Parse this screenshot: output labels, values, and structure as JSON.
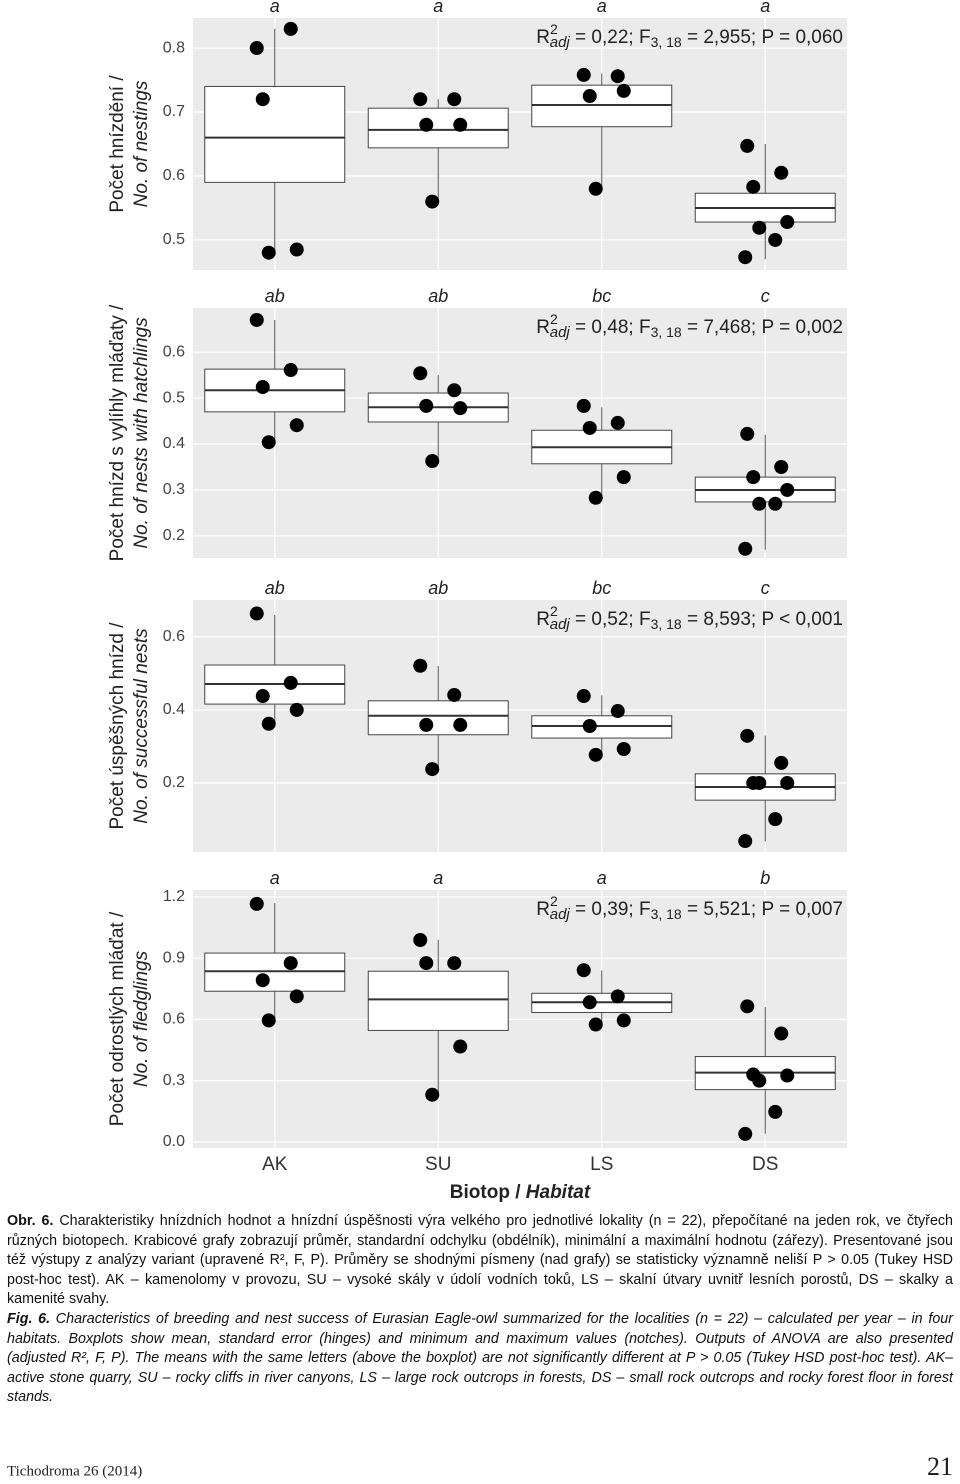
{
  "chart_data": [
    {
      "type": "box",
      "ylabel": [
        "Počet hnízdění /",
        "No. of nestings"
      ],
      "ylim": [
        0.453,
        0.847
      ],
      "yticks": [
        0.5,
        0.6,
        0.7,
        0.8
      ],
      "grid": true,
      "letters": [
        "a",
        "a",
        "a",
        "a"
      ],
      "annotation": {
        "r": "R",
        "sup": "2",
        "sub": "adj",
        "text1": " = 0,22; F",
        "sub2": "3, 18",
        "text2": " = 2,955; P = 0,060"
      },
      "mean": [
        0.66,
        0.672,
        0.711,
        0.55
      ],
      "q1": [
        0.59,
        0.644,
        0.677,
        0.528
      ],
      "q3": [
        0.74,
        0.706,
        0.742,
        0.573
      ],
      "min": [
        0.48,
        0.56,
        0.58,
        0.47
      ],
      "max": [
        0.83,
        0.72,
        0.76,
        0.65
      ],
      "points": [
        [
          0.8,
          0.83,
          0.72,
          0.485,
          0.48
        ],
        [
          0.72,
          0.72,
          0.68,
          0.68,
          0.56
        ],
        [
          0.758,
          0.756,
          0.725,
          0.733,
          0.58
        ],
        [
          0.647,
          0.605,
          0.583,
          0.528,
          0.519,
          0.5,
          0.473
        ]
      ],
      "color": "#000000"
    },
    {
      "type": "box",
      "ylabel": [
        "Počet hnízd s vylíhly mláďaty /",
        "No. of nests with hatchlings"
      ],
      "ylim": [
        0.152,
        0.696
      ],
      "yticks": [
        0.2,
        0.3,
        0.4,
        0.5,
        0.6
      ],
      "grid": true,
      "letters": [
        "ab",
        "ab",
        "bc",
        "c"
      ],
      "annotation": {
        "r": "R",
        "sup": "2",
        "sub": "adj",
        "text1": " = 0,48; F",
        "sub2": "3, 18",
        "text2": " = 7,468; P = 0,002"
      },
      "mean": [
        0.517,
        0.48,
        0.393,
        0.3
      ],
      "q1": [
        0.47,
        0.448,
        0.357,
        0.274
      ],
      "q3": [
        0.563,
        0.511,
        0.43,
        0.328
      ],
      "min": [
        0.4,
        0.36,
        0.28,
        0.17
      ],
      "max": [
        0.67,
        0.55,
        0.48,
        0.42
      ],
      "points": [
        [
          0.67,
          0.561,
          0.524,
          0.441,
          0.404
        ],
        [
          0.554,
          0.517,
          0.483,
          0.478,
          0.363
        ],
        [
          0.483,
          0.446,
          0.435,
          0.328,
          0.283
        ],
        [
          0.422,
          0.35,
          0.328,
          0.3,
          0.27,
          0.27,
          0.172
        ]
      ],
      "color": "#000000"
    },
    {
      "type": "box",
      "ylabel": [
        "Počet úspěšných hnízd /",
        "No. of successful nests"
      ],
      "ylim": [
        0.011,
        0.701
      ],
      "yticks": [
        0.2,
        0.4,
        0.6
      ],
      "grid": true,
      "letters": [
        "ab",
        "ab",
        "bc",
        "c"
      ],
      "annotation": {
        "r": "R",
        "sup": "2",
        "sub": "adj",
        "text1": " = 0,52; F",
        "sub2": "3, 18",
        "text2": " = 8,593; P < 0,001"
      },
      "mean": [
        0.471,
        0.384,
        0.356,
        0.189
      ],
      "q1": [
        0.416,
        0.332,
        0.323,
        0.153
      ],
      "q3": [
        0.523,
        0.425,
        0.384,
        0.225
      ],
      "min": [
        0.36,
        0.24,
        0.28,
        0.04
      ],
      "max": [
        0.66,
        0.52,
        0.44,
        0.33
      ],
      "points": [
        [
          0.664,
          0.474,
          0.438,
          0.4,
          0.362
        ],
        [
          0.521,
          0.441,
          0.359,
          0.359,
          0.238
        ],
        [
          0.438,
          0.397,
          0.356,
          0.293,
          0.277
        ],
        [
          0.329,
          0.255,
          0.2,
          0.2,
          0.2,
          0.101,
          0.041
        ]
      ],
      "color": "#000000"
    },
    {
      "type": "box",
      "ylabel": [
        "Počet odrostlých mláďat /",
        "No. of fledglings"
      ],
      "ylim": [
        -0.03,
        1.234
      ],
      "yticks": [
        {
          "value": 0,
          "label": "0.0"
        },
        0.3,
        0.6,
        0.9,
        1.2
      ],
      "grid": true,
      "letters": [
        "a",
        "a",
        "a",
        "b"
      ],
      "annotation": {
        "r": "R",
        "sup": "2",
        "sub": "adj",
        "text1": " = 0,39; F",
        "sub2": "3, 18",
        "text2": " = 5,521; P = 0,007"
      },
      "mean": [
        0.836,
        0.698,
        0.684,
        0.339
      ],
      "q1": [
        0.738,
        0.546,
        0.634,
        0.256
      ],
      "q3": [
        0.925,
        0.836,
        0.728,
        0.418
      ],
      "min": [
        0.6,
        0.23,
        0.58,
        0.04
      ],
      "max": [
        1.17,
        0.99,
        0.84,
        0.66
      ],
      "points": [
        [
          1.166,
          0.876,
          0.792,
          0.713,
          0.595
        ],
        [
          0.989,
          0.876,
          0.876,
          0.467,
          0.231
        ],
        [
          0.841,
          0.713,
          0.684,
          0.595,
          0.575
        ],
        [
          0.664,
          0.531,
          0.33,
          0.325,
          0.3,
          0.147,
          0.039
        ]
      ],
      "color": "#000000",
      "categories": [
        "AK",
        "SU",
        "LS",
        "DS"
      ],
      "xlabel": {
        "main": "Biotop / ",
        "italic": "Habitat"
      }
    }
  ],
  "caption": {
    "cz_label": "Obr. 6.",
    "cz_text": " Charakteristiky hnízdních hodnot a hnízdní úspěšnosti výra velkého pro jednotlivé lokality (n = 22), přepočítané na jeden rok, ve čtyřech různých biotopech. Krabicové grafy zobrazují průměr, standardní odchylku (obdélník), minimální a maximální hodnotu (zářezy). Presentované jsou též výstupy z analýzy variant (upravené R², F, P). Průměry se shodnými písmeny (nad grafy) se statisticky významně neliší P > 0.05 (Tukey HSD post-hoc test). AK – kamenolomy v provozu, SU – vysoké skály v údolí vodních toků, LS – skalní útvary uvnitř lesních porostů, DS – skalky a kamenité svahy.",
    "en_label": "Fig. 6.",
    "en_text": " Characteristics of breeding and nest success of Eurasian Eagle-owl summarized for the localities (n = 22) – calculated per year – in four habitats. Boxplots show mean, standard error (hinges) and minimum and maximum values (notches). Outputs of ANOVA are also presented (adjusted R², F, P). The means with the same letters (above the boxplot) are not significantly different at P > 0.05 (Tukey HSD post-hoc test). AK– active stone quarry, SU – rocky cliffs in river canyons, LS – large rock outcrops in forests, DS – small rock outcrops and rocky forest floor in forest stands."
  },
  "footer": {
    "journal": "Tichodroma 26 (2014)",
    "page": "21"
  }
}
